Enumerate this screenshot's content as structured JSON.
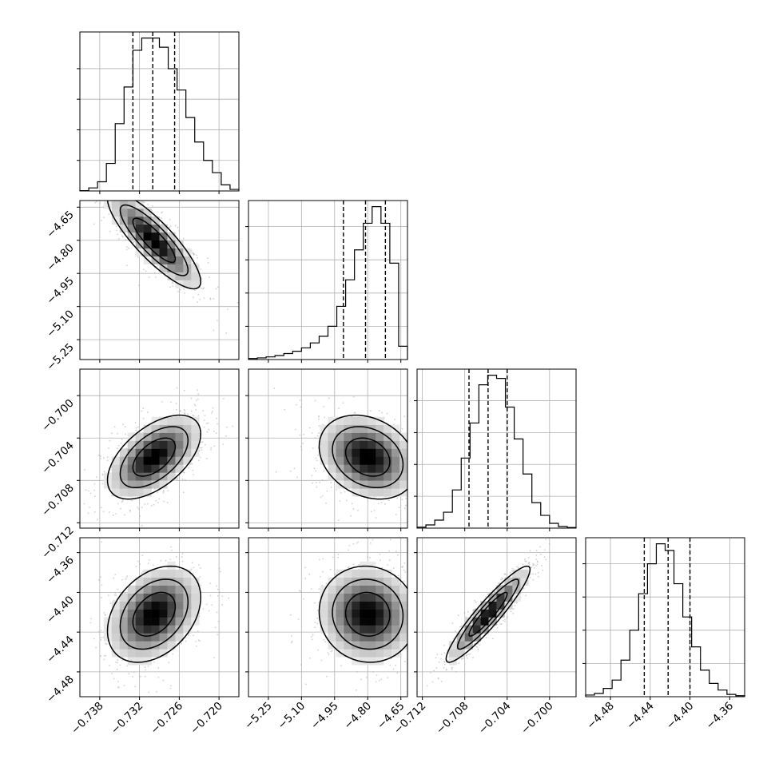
{
  "chart_data": {
    "type": "corner",
    "description_of_type": "corner plot of 4 parameters: 1D histograms on the diagonal with dashed quantile lines, 2D density histograms with contours and scatter below the diagonal",
    "grid": true,
    "colors": {
      "hist_line": "#000000",
      "scatter": "#b0b0b0",
      "density_dark": "#000000",
      "density_light": "#ffffff",
      "grid": "#b0b0b0"
    },
    "parameters": [
      {
        "range": [
          -0.741,
          -0.717
        ],
        "ticks": [
          -0.738,
          -0.732,
          -0.726,
          -0.72
        ],
        "tick_labels": [
          "−0.738",
          "−0.732",
          "−0.726",
          "−0.720"
        ],
        "quantiles": [
          -0.733,
          -0.73,
          -0.7267
        ],
        "hist": [
          0.1,
          1,
          3,
          9,
          22,
          34,
          46,
          50,
          50,
          47,
          40,
          33,
          24,
          16,
          10,
          6,
          2,
          0.5
        ],
        "mean": -0.7298,
        "std": 0.0032
      },
      {
        "range": [
          -5.34,
          -4.62
        ],
        "ticks": [
          -5.25,
          -5.1,
          -4.95,
          -4.8,
          -4.65
        ],
        "tick_labels": [
          "−5.25",
          "−5.10",
          "−4.95",
          "−4.80",
          "−4.65"
        ],
        "quantiles": [
          -4.91,
          -4.81,
          -4.72
        ],
        "hist": [
          0.3,
          0.5,
          0.8,
          1.2,
          1.8,
          2.5,
          3.5,
          5,
          7,
          10,
          16,
          24,
          33,
          41,
          46,
          41,
          29,
          4
        ],
        "mean": -4.8,
        "std": 0.1
      },
      {
        "range": [
          -0.7125,
          -0.6975
        ],
        "ticks": [
          -0.712,
          -0.708,
          -0.704,
          -0.7
        ],
        "tick_labels": [
          "−0.712",
          "−0.708",
          "−0.704",
          "−0.700"
        ],
        "quantiles": [
          -0.7076,
          -0.7058,
          -0.704
        ],
        "hist": [
          0.3,
          1,
          2.5,
          5,
          12,
          22,
          33,
          45,
          48,
          47,
          38,
          28,
          17,
          8,
          4,
          1.5,
          0.5,
          0.2
        ],
        "mean": -0.7058,
        "std": 0.0018
      },
      {
        "range": [
          -4.505,
          -4.345
        ],
        "ticks": [
          -4.48,
          -4.44,
          -4.4,
          -4.36
        ],
        "tick_labels": [
          "−4.48",
          "−4.44",
          "−4.40",
          "−4.36"
        ],
        "quantiles": [
          -4.446,
          -4.422,
          -4.4
        ],
        "hist": [
          0.5,
          1,
          2.5,
          5,
          11,
          20,
          31,
          40,
          46,
          44,
          34,
          24,
          15,
          8,
          4,
          2,
          0.7,
          0.3
        ],
        "mean": -4.422,
        "std": 0.022
      }
    ],
    "correlations": [
      [
        1,
        -0.85,
        0.55,
        0.35
      ],
      [
        -0.85,
        1,
        -0.25,
        -0.05
      ],
      [
        0.55,
        -0.25,
        1,
        0.93
      ],
      [
        0.35,
        -0.05,
        0.93,
        1
      ]
    ],
    "panel_layout": {
      "n": 4,
      "x_tick_labels_bottom_row_only": true,
      "y_tick_labels_first_column_only": true
    }
  }
}
